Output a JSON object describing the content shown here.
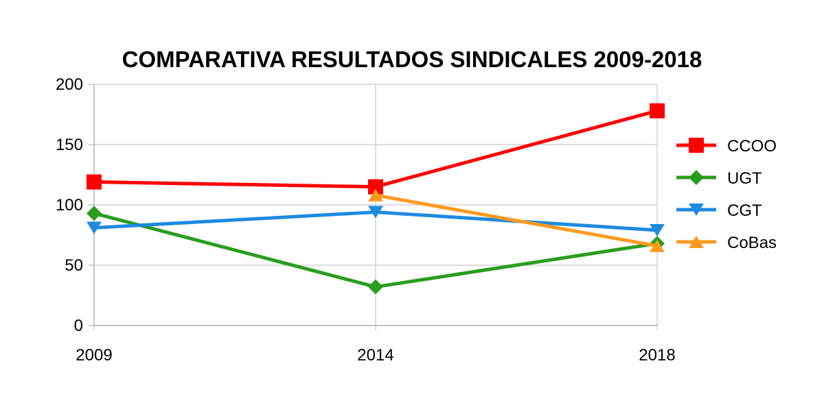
{
  "chart_data": {
    "type": "line",
    "title": "COMPARATIVA RESULTADOS SINDICALES 2009-2018",
    "xlabel": "",
    "ylabel": "",
    "categories": [
      "2009",
      "2014",
      "2018"
    ],
    "ylim": [
      0,
      200
    ],
    "yticks": [
      "0",
      "50",
      "100",
      "150",
      "200"
    ],
    "grid": true,
    "legend_position": "right",
    "series": [
      {
        "name": "CCOO",
        "values": [
          119,
          115,
          178
        ],
        "color": "#ff0000",
        "marker": "square"
      },
      {
        "name": "UGT",
        "values": [
          93,
          32,
          68
        ],
        "color": "#2a9d1f",
        "marker": "diamond"
      },
      {
        "name": "CGT",
        "values": [
          81,
          94,
          79
        ],
        "color": "#1e8ae0",
        "marker": "triangle-down"
      },
      {
        "name": "CoBas",
        "values": [
          null,
          108,
          66
        ],
        "color": "#ff9a1f",
        "marker": "triangle-up"
      }
    ]
  }
}
